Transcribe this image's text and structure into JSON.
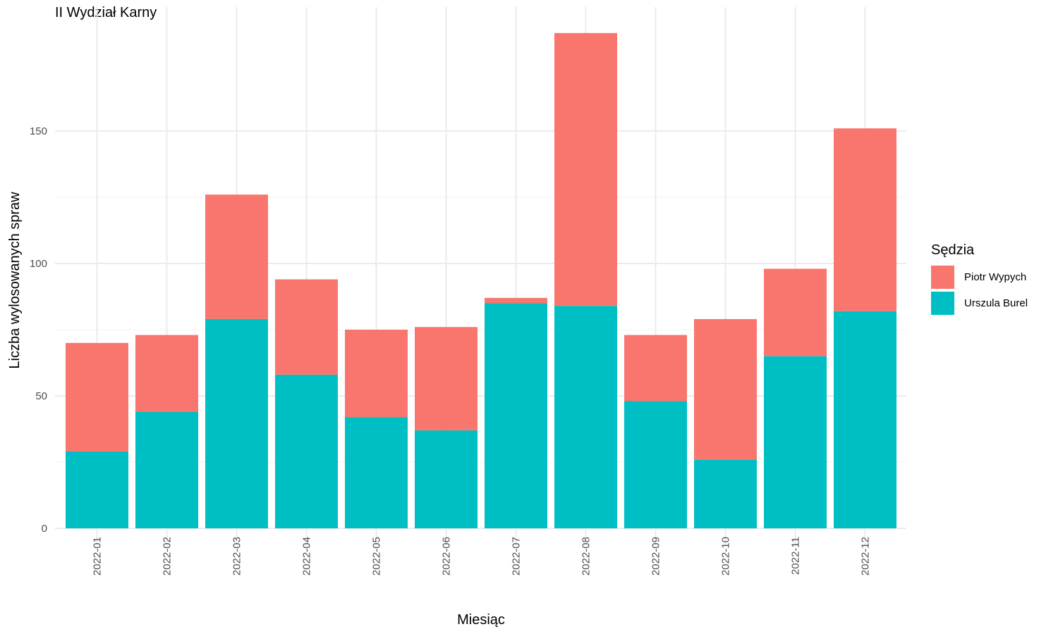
{
  "chart_data": {
    "type": "bar",
    "stacked": true,
    "title": "II Wydział Karny",
    "xlabel": "Miesiąc",
    "ylabel": "Liczba wylosowanych spraw",
    "categories": [
      "2022-01",
      "2022-02",
      "2022-03",
      "2022-04",
      "2022-05",
      "2022-06",
      "2022-07",
      "2022-08",
      "2022-09",
      "2022-10",
      "2022-11",
      "2022-12"
    ],
    "series": [
      {
        "name": "Urszula Burel",
        "color": "#00BFC4",
        "values": [
          29,
          44,
          79,
          58,
          42,
          37,
          85,
          84,
          48,
          26,
          65,
          82
        ]
      },
      {
        "name": "Piotr Wypych",
        "color": "#F8766D",
        "values": [
          41,
          29,
          47,
          36,
          33,
          39,
          2,
          103,
          25,
          53,
          33,
          69
        ]
      }
    ],
    "yticks": [
      0,
      50,
      100,
      150
    ],
    "ylim": [
      0,
      190
    ],
    "grid": true,
    "legend": {
      "title": "Sędzia",
      "placement": "right",
      "entries": [
        {
          "label": "Piotr Wypych",
          "color": "#F8766D"
        },
        {
          "label": "Urszula Burel",
          "color": "#00BFC4"
        }
      ]
    }
  }
}
